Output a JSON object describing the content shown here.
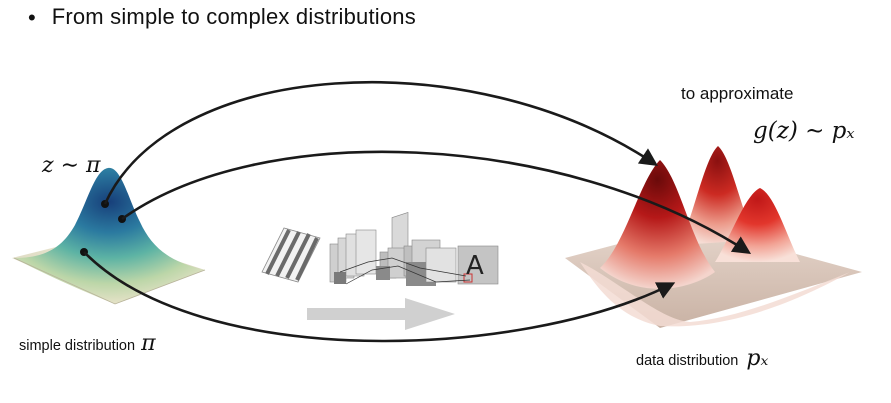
{
  "bullet": {
    "symbol": "•",
    "text": "From simple to complex distributions"
  },
  "labels": {
    "z_sample": "z ∼ π",
    "to_approximate": "to approximate",
    "generator_expr": "g(z) ∼ pₓ",
    "simple_distribution_text": "simple distribution",
    "simple_distribution_symbol": "π",
    "data_distribution_text": "data distribution",
    "data_distribution_symbol": "pₓ"
  },
  "network_output_glyph": "A",
  "colors": {
    "arrow": "#1a1a1a",
    "simple_peak": "#1b4f8a",
    "simple_mid": "#4aa3a8",
    "simple_base": "#e6e2c8",
    "data_peak": "#b51818",
    "data_light": "#f0c8c0",
    "data_base": "#d9c8bc",
    "flow_arrow": "#cfcfcf",
    "network_block": "#9a9a9a"
  },
  "icons": {
    "neural_network": "neural-network-icon",
    "flow_arrow": "right-arrow-icon"
  }
}
